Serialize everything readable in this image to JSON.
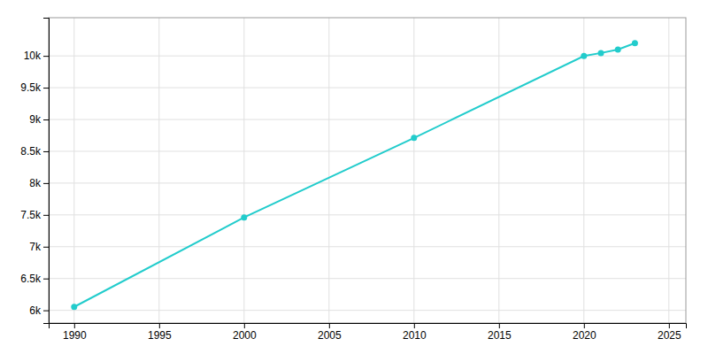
{
  "chart_data": {
    "type": "line",
    "x": [
      1990,
      2000,
      2010,
      2020,
      2021,
      2022,
      2023
    ],
    "values": [
      6054,
      7460,
      8710,
      9998,
      10045,
      10100,
      10200
    ],
    "color": "#22CCCC",
    "marker": "circle",
    "xlim": [
      1988.5,
      2026
    ],
    "ylim": [
      5800,
      10600
    ],
    "xticks": [
      1990,
      1995,
      2000,
      2005,
      2010,
      2015,
      2020,
      2025
    ],
    "yticks": [
      {
        "value": 6000,
        "label": "6k"
      },
      {
        "value": 6500,
        "label": "6.5k"
      },
      {
        "value": 7000,
        "label": "7k"
      },
      {
        "value": 7500,
        "label": "7.5k"
      },
      {
        "value": 8000,
        "label": "8k"
      },
      {
        "value": 8500,
        "label": "8.5k"
      },
      {
        "value": 9000,
        "label": "9k"
      },
      {
        "value": 9500,
        "label": "9.5k"
      },
      {
        "value": 10000,
        "label": "10k"
      }
    ],
    "grid": true
  }
}
